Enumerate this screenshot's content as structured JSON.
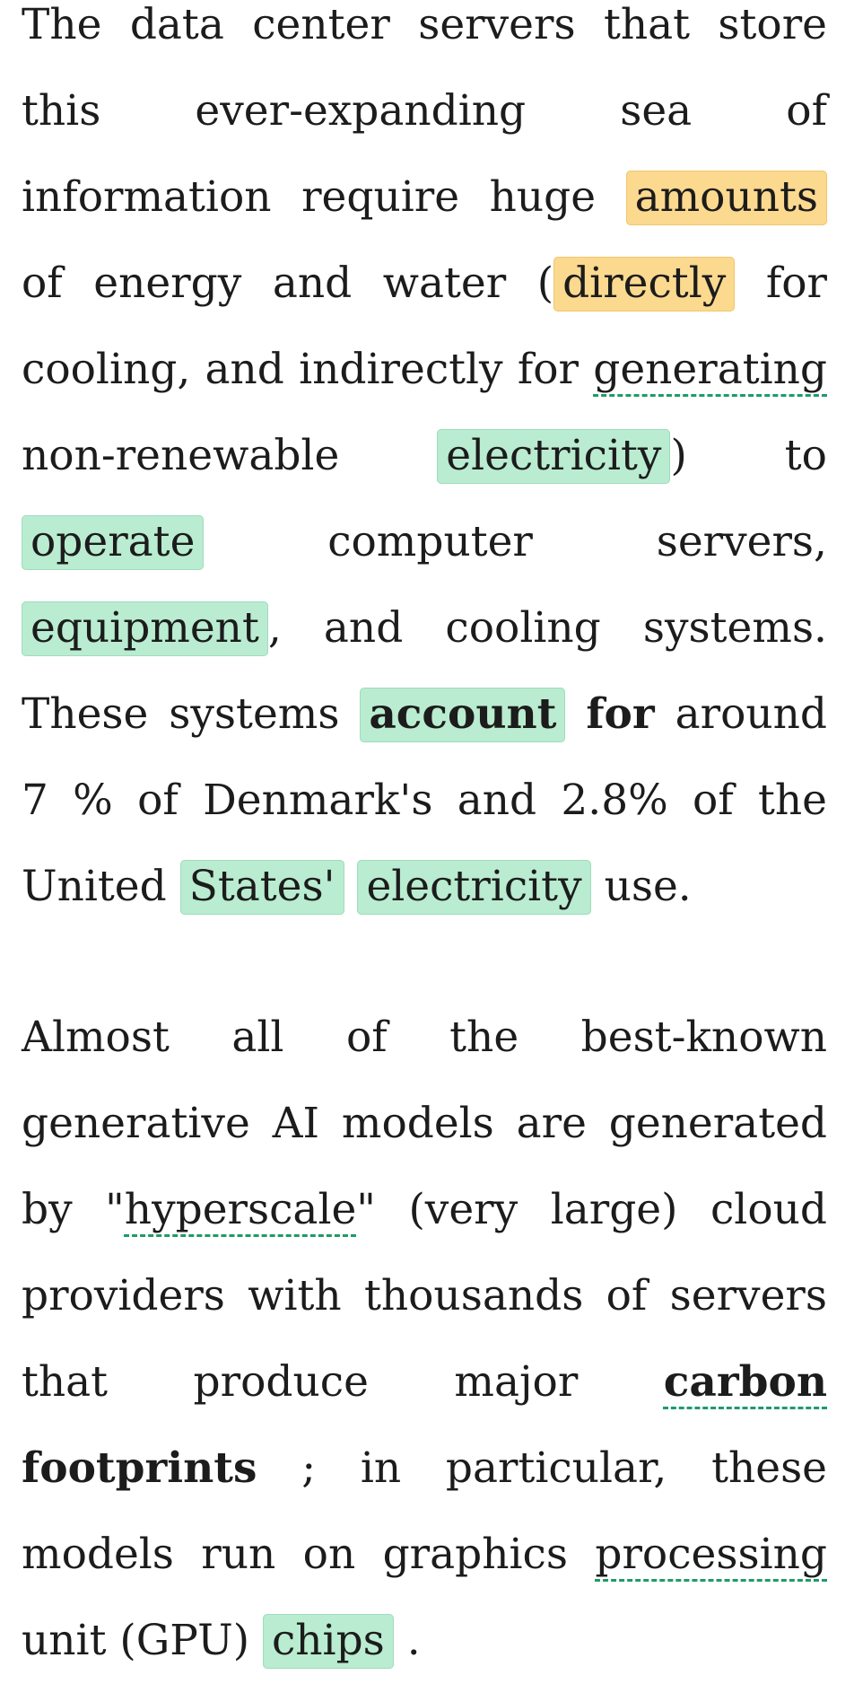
{
  "colors": {
    "text": "#1c1c1c",
    "highlight_yellow": "#fbd98f",
    "highlight_green": "#b9ecd0",
    "underline_dashed": "#1e9b6a",
    "background": "#ffffff"
  },
  "paragraph1": {
    "t01": "The data center servers that store this ever-expanding sea of information require huge ",
    "hl_amounts": "amounts",
    "t02": " of energy and water (",
    "hl_directly": "directly",
    "t03": " for cooling, and indirectly for ",
    "ul_generating": "generating",
    "t04": " non-renewable ",
    "hl_electricity1": "electricity",
    "t05": ") to ",
    "hl_operate": "operate",
    "t06": " computer servers, ",
    "hl_equipment": "equipment",
    "t07": ", and cooling systems. These systems ",
    "hl_account": "account",
    "t08": " ",
    "bold_for": "for",
    "t09": " around 7 % of Denmark's and 2.8% of the United ",
    "hl_states": "States'",
    "t10": " ",
    "hl_electricity2": "electricity",
    "t11": " use."
  },
  "paragraph2": {
    "t01": "Almost all of the best-known generative AI models are generated by \"",
    "ul_hyperscale": "hyperscale",
    "t02": "\" (very large) cloud providers with thousands of servers that produce major ",
    "ul_carbon": "carbon",
    "t03": " ",
    "bold_footprints": "footprints",
    "t04": " ; in particular, these models run on graphics ",
    "ul_processing": "processing",
    "t05": " unit (GPU) ",
    "hl_chips": "chips",
    "t06": " ."
  }
}
